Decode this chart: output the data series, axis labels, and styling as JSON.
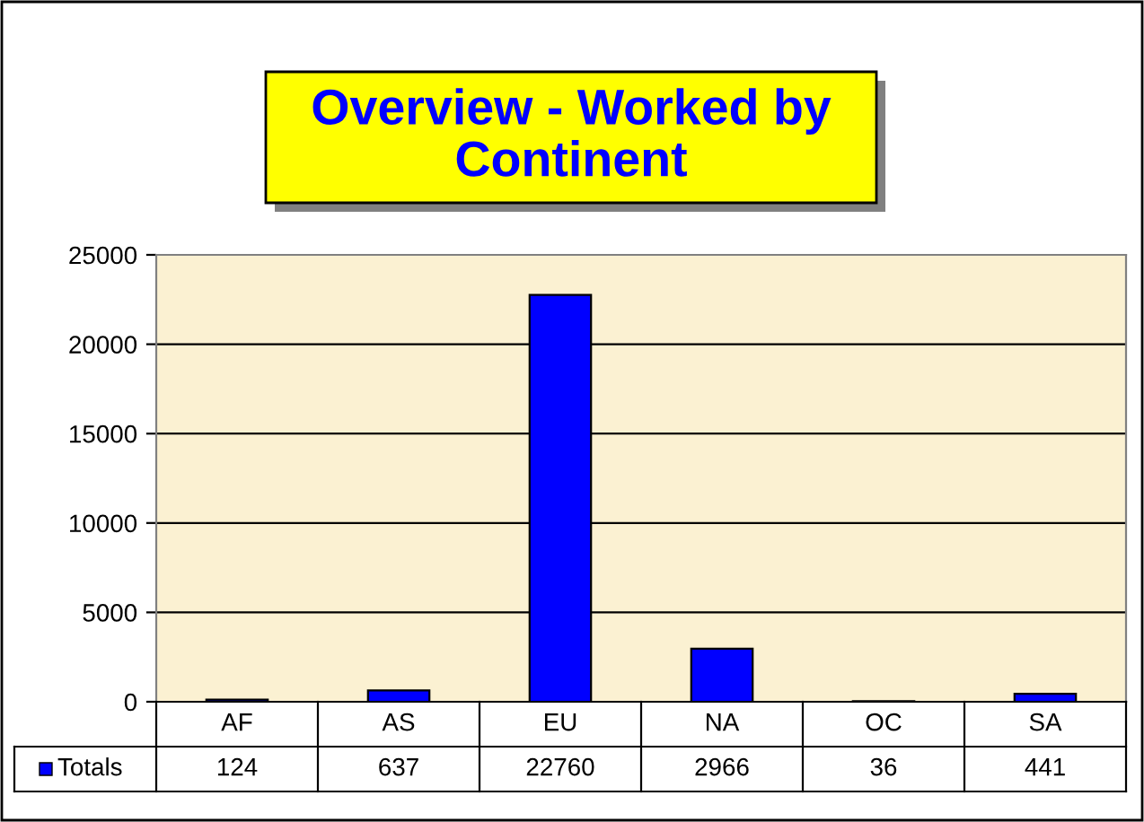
{
  "chart_data": {
    "type": "bar",
    "title": "Overview - Worked by\nContinent",
    "categories": [
      "AF",
      "AS",
      "EU",
      "NA",
      "OC",
      "SA"
    ],
    "series": [
      {
        "name": "Totals",
        "color": "#0000ff",
        "values": [
          124,
          637,
          22760,
          2966,
          36,
          441
        ]
      }
    ],
    "ylim": [
      0,
      25000
    ],
    "yticks": [
      0,
      5000,
      10000,
      15000,
      20000,
      25000
    ],
    "grid": "y",
    "legend": "bottom",
    "data_labels": true
  }
}
